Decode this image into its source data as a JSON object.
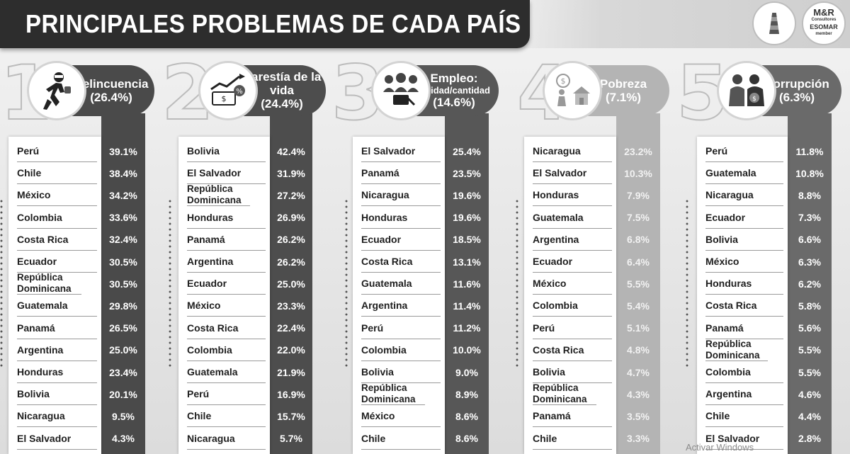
{
  "title": "PRINCIPALES PROBLEMAS DE CADA PAÍS",
  "logos": [
    {
      "icon": "lighthouse-logo-icon"
    },
    {
      "icon": "mr-esomar-logo-icon",
      "lines": [
        "M&R",
        "Consultores",
        "ESOMAR",
        "member"
      ]
    }
  ],
  "colors": {
    "s1": "#4a4a4a",
    "s2": "#4d4d4d",
    "s3": "#575757",
    "s4": "#b4b4b4",
    "s5": "#6a6a6a"
  },
  "sections": [
    {
      "rank": "1",
      "name": "Delincuencia",
      "pct": "(26.4%)",
      "icon": "thief-running-icon",
      "rows": [
        {
          "country": "Perú",
          "value": "39.1%"
        },
        {
          "country": "Chile",
          "value": "38.4%"
        },
        {
          "country": "México",
          "value": "34.2%"
        },
        {
          "country": "Colombia",
          "value": "33.6%"
        },
        {
          "country": "Costa Rica",
          "value": "32.4%"
        },
        {
          "country": "Ecuador",
          "value": "30.5%"
        },
        {
          "country": "República Dominicana",
          "value": "30.5%"
        },
        {
          "country": "Guatemala",
          "value": "29.8%"
        },
        {
          "country": "Panamá",
          "value": "26.5%"
        },
        {
          "country": "Argentina",
          "value": "25.0%"
        },
        {
          "country": "Honduras",
          "value": "23.4%"
        },
        {
          "country": "Bolivia",
          "value": "20.1%"
        },
        {
          "country": "Nicaragua",
          "value": "9.5%"
        },
        {
          "country": "El Salvador",
          "value": "4.3%"
        }
      ]
    },
    {
      "rank": "2",
      "name": "Carestía de la vida",
      "pct": "(24.4%)",
      "icon": "rising-prices-icon",
      "rows": [
        {
          "country": "Bolivia",
          "value": "42.4%"
        },
        {
          "country": "El Salvador",
          "value": "31.9%"
        },
        {
          "country": "República Dominicana",
          "value": "27.2%"
        },
        {
          "country": "Honduras",
          "value": "26.9%"
        },
        {
          "country": "Panamá",
          "value": "26.2%"
        },
        {
          "country": "Argentina",
          "value": "26.2%"
        },
        {
          "country": "Ecuador",
          "value": "25.0%"
        },
        {
          "country": "México",
          "value": "23.3%"
        },
        {
          "country": "Costa Rica",
          "value": "22.4%"
        },
        {
          "country": "Colombia",
          "value": "22.0%"
        },
        {
          "country": "Guatemala",
          "value": "21.9%"
        },
        {
          "country": "Perú",
          "value": "16.9%"
        },
        {
          "country": "Chile",
          "value": "15.7%"
        },
        {
          "country": "Nicaragua",
          "value": "5.7%"
        }
      ]
    },
    {
      "rank": "3",
      "name": "Empleo:",
      "name2": "calidad/cantidad",
      "pct": "(14.6%)",
      "icon": "workers-group-icon",
      "rows": [
        {
          "country": "El Salvador",
          "value": "25.4%"
        },
        {
          "country": "Panamá",
          "value": "23.5%"
        },
        {
          "country": "Nicaragua",
          "value": "19.6%"
        },
        {
          "country": "Honduras",
          "value": "19.6%"
        },
        {
          "country": "Ecuador",
          "value": "18.5%"
        },
        {
          "country": "Costa Rica",
          "value": "13.1%"
        },
        {
          "country": "Guatemala",
          "value": "11.6%"
        },
        {
          "country": "Argentina",
          "value": "11.4%"
        },
        {
          "country": "Perú",
          "value": "11.2%"
        },
        {
          "country": "Colombia",
          "value": "10.0%"
        },
        {
          "country": "Bolivia",
          "value": "9.0%"
        },
        {
          "country": "República Dominicana",
          "value": "8.9%"
        },
        {
          "country": "México",
          "value": "8.6%"
        },
        {
          "country": "Chile",
          "value": "8.6%"
        }
      ]
    },
    {
      "rank": "4",
      "name": "Pobreza",
      "pct": "(7.1%)",
      "icon": "poor-house-icon",
      "rows": [
        {
          "country": "Nicaragua",
          "value": "23.2%"
        },
        {
          "country": "El Salvador",
          "value": "10.3%"
        },
        {
          "country": "Honduras",
          "value": "7.9%"
        },
        {
          "country": "Guatemala",
          "value": "7.5%"
        },
        {
          "country": "Argentina",
          "value": "6.8%"
        },
        {
          "country": "Ecuador",
          "value": "6.4%"
        },
        {
          "country": "México",
          "value": "5.5%"
        },
        {
          "country": "Colombia",
          "value": "5.4%"
        },
        {
          "country": "Perú",
          "value": "5.1%"
        },
        {
          "country": "Costa Rica",
          "value": "4.8%"
        },
        {
          "country": "Bolivia",
          "value": "4.7%"
        },
        {
          "country": "República Dominicana",
          "value": "4.3%"
        },
        {
          "country": "Panamá",
          "value": "3.5%"
        },
        {
          "country": "Chile",
          "value": "3.3%"
        }
      ]
    },
    {
      "rank": "5",
      "name": "Corrupción",
      "pct": "(6.3%)",
      "icon": "bribery-icon",
      "rows": [
        {
          "country": "Perú",
          "value": "11.8%"
        },
        {
          "country": "Guatemala",
          "value": "10.8%"
        },
        {
          "country": "Nicaragua",
          "value": "8.8%"
        },
        {
          "country": "Ecuador",
          "value": "7.3%"
        },
        {
          "country": "Bolivia",
          "value": "6.6%"
        },
        {
          "country": "México",
          "value": "6.3%"
        },
        {
          "country": "Honduras",
          "value": "6.2%"
        },
        {
          "country": "Costa Rica",
          "value": "5.8%"
        },
        {
          "country": "Panamá",
          "value": "5.6%"
        },
        {
          "country": "República Dominicana",
          "value": "5.5%"
        },
        {
          "country": "Colombia",
          "value": "5.5%"
        },
        {
          "country": "Argentina",
          "value": "4.6%"
        },
        {
          "country": "Chile",
          "value": "4.4%"
        },
        {
          "country": "El Salvador",
          "value": "2.8%"
        }
      ]
    }
  ],
  "watermark": "Activar Windows"
}
